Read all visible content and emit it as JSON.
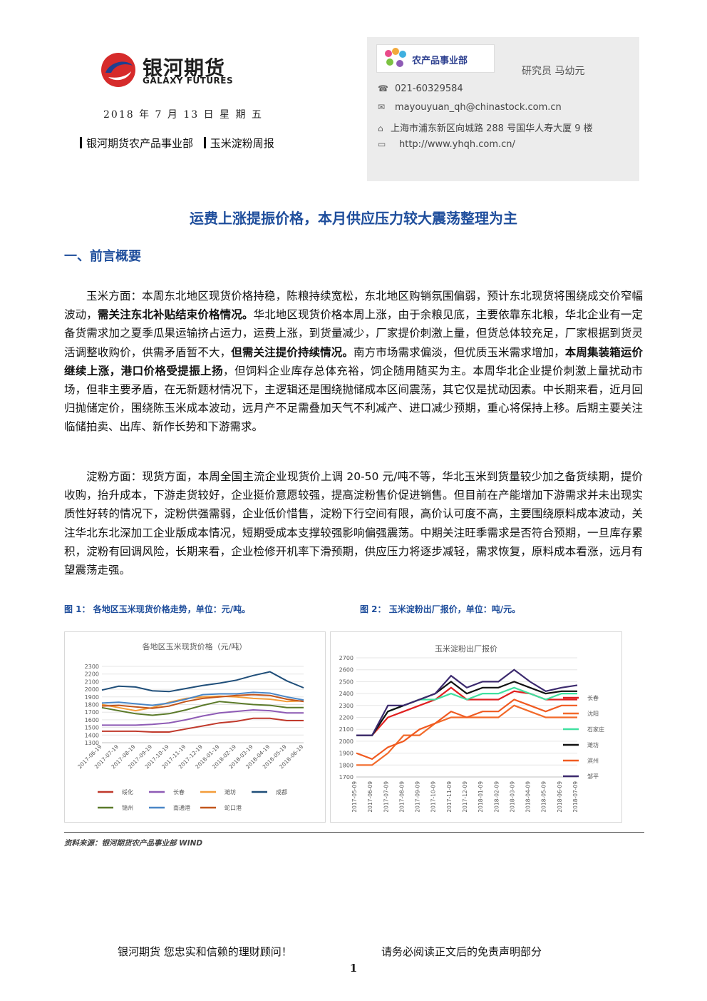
{
  "header": {
    "logo_cn": "银河期货",
    "logo_en": "GALAXY FUTURES",
    "date": "2018 年 7 月 13 日 星 期 五",
    "dept": "银河期货农产品事业部",
    "report": "玉米淀粉周报"
  },
  "contact": {
    "dept_badge": "农产品事业部",
    "researcher": "研究员   马幼元",
    "phone": "021-60329584",
    "email": "mayouyuan_qh@chinastock.com.cn",
    "address": "上海市浦东新区向城路 288 号国华人寿大厦 9 楼",
    "website": "http://www.yhqh.com.cn/",
    "icons": [
      "phone-icon",
      "email-icon",
      "address-icon",
      "website-icon"
    ]
  },
  "title": "运费上涨提振价格，本月供应压力较大震荡整理为主",
  "section1": "一、前言概要",
  "para1": {
    "s1": "玉米方面：本周东北地区现货价格持稳，陈粮持续宽松，东北地区购销氛围偏弱，预计东北现货将围绕成交价窄幅波动，",
    "b1": "需关注东北补贴结束价格情况。",
    "s2": "华北地区现货价格本周上涨，由于余粮见底，主要依靠东北粮，华北企业有一定备货需求加之夏季瓜果运输挤占运力，运费上涨，到货量减少，厂家提价刺激上量，但货总体较充足，厂家根据到货灵活调整收购价，供需矛盾暂不大，",
    "b2": "但需关注提价持续情况。",
    "s3": "南方市场需求偏淡，但优质玉米需求增加，",
    "b3": "本周集装箱运价继续上涨，港口价格受提振上扬",
    "s4": "，但饲料企业库存总体充裕，饲企随用随买为主。本周华北企业提价刺激上量扰动市场，但非主要矛盾，在无新题材情况下，主逻辑还是围绕抛储成本区间震荡，其它仅是扰动因素。中长期来看，近月回归抛储定价，围绕陈玉米成本波动，远月产不足需叠加天气不利减产、进口减少预期，重心将保持上移。后期主要关注临储拍卖、出库、新作长势和下游需求。"
  },
  "para2": "淀粉方面：现货方面，本周全国主流企业现货价上调 20-50 元/吨不等，华北玉米到货量较少加之备货续期，提价收购，抬升成本，下游走货较好，企业挺价意愿较强，提高淀粉售价促进销售。但目前在产能增加下游需求并未出现实质性好转的情况下，淀粉供强需弱，企业低价惜售，淀粉下行空间有限，高价认可度不高，主要围绕原料成本波动，关注华北东北深加工企业版成本情况，短期受成本支撑较强影响偏强震荡。中期关注旺季需求是否符合预期，一旦库存累积，淀粉有回调风险，长期来看，企业检修开机率下滑预期，供应压力将逐步减轻，需求恢复，原料成本看涨，远月有望震荡走强。",
  "fig1_caption": "图 1：  各地区玉米现货价格走势，单位：元/吨。",
  "fig2_caption": "图 2：  玉米淀粉出厂报价，单位：吨/元。",
  "source": "资料来源：银河期货农产品事业部  WIND",
  "footer": {
    "left": "银河期货  您忠实和信赖的理财顾问！",
    "right": "请务必阅读正文后的免责声明部分",
    "page": "1"
  },
  "chart_data": [
    {
      "type": "line",
      "title": "各地区玉米现货价格（元/吨）",
      "x": [
        "2017-06-19",
        "2017-07-19",
        "2017-08-19",
        "2017-09-19",
        "2017-10-19",
        "2017-11-19",
        "2017-12-19",
        "2018-01-19",
        "2018-02-19",
        "2018-03-19",
        "2018-04-19",
        "2018-05-19",
        "2018-06-19"
      ],
      "ylim": [
        1300,
        2300
      ],
      "yticks": [
        1300,
        1400,
        1500,
        1600,
        1700,
        1800,
        1900,
        2000,
        2100,
        2200,
        2300
      ],
      "legend_position": "bottom",
      "series": [
        {
          "name": "绥化",
          "color": "#c0392b",
          "values": [
            1450,
            1450,
            1450,
            1440,
            1440,
            1480,
            1520,
            1560,
            1580,
            1620,
            1620,
            1590,
            1590
          ]
        },
        {
          "name": "长春",
          "color": "#8e5bb5",
          "values": [
            1530,
            1530,
            1530,
            1540,
            1560,
            1600,
            1650,
            1690,
            1710,
            1730,
            1720,
            1690,
            1690
          ]
        },
        {
          "name": "潍坊",
          "color": "#f39c3a",
          "values": [
            1800,
            1760,
            1720,
            1760,
            1830,
            1880,
            1900,
            1910,
            1900,
            1880,
            1870,
            1840,
            1850
          ]
        },
        {
          "name": "成都",
          "color": "#1f4e79",
          "values": [
            1990,
            2040,
            2030,
            1980,
            1970,
            2010,
            2050,
            2080,
            2120,
            2180,
            2230,
            2110,
            2020
          ]
        },
        {
          "name": "锦州",
          "color": "#5b7a2a",
          "values": [
            1760,
            1720,
            1680,
            1660,
            1680,
            1730,
            1790,
            1840,
            1820,
            1800,
            1790,
            1760,
            1760
          ]
        },
        {
          "name": "南通港",
          "color": "#4a86c6",
          "values": [
            1820,
            1830,
            1810,
            1790,
            1820,
            1870,
            1930,
            1940,
            1940,
            1960,
            1950,
            1900,
            1860
          ]
        },
        {
          "name": "蛇口港",
          "color": "#c2561c",
          "values": [
            1780,
            1790,
            1770,
            1750,
            1780,
            1840,
            1880,
            1900,
            1920,
            1930,
            1920,
            1870,
            1840
          ]
        }
      ]
    },
    {
      "type": "line",
      "title": "玉米淀粉出厂报价",
      "x": [
        "2017-05-09",
        "2017-06-09",
        "2017-07-09",
        "2017-08-09",
        "2017-09-09",
        "2017-10-09",
        "2017-11-09",
        "2017-12-09",
        "2018-01-09",
        "2018-02-09",
        "2018-03-09",
        "2018-04-09",
        "2018-05-09",
        "2018-06-09",
        "2018-07-09"
      ],
      "ylim": [
        1700,
        2700
      ],
      "yticks": [
        1700,
        1800,
        1900,
        2000,
        2100,
        2200,
        2300,
        2400,
        2500,
        2600,
        2700
      ],
      "legend_position": "right",
      "series": [
        {
          "name": "长春",
          "color": "#e02020",
          "values": [
            2050,
            2050,
            2200,
            2250,
            2300,
            2350,
            2450,
            2350,
            2350,
            2350,
            2420,
            2400,
            2350,
            2350,
            2350
          ]
        },
        {
          "name": "沈阳",
          "color": "#f26a2a",
          "values": [
            1800,
            1800,
            1900,
            2050,
            2050,
            2150,
            2200,
            2200,
            2200,
            2200,
            2300,
            2250,
            2200,
            2200,
            2200
          ]
        },
        {
          "name": "石家庄",
          "color": "#40e0a0",
          "values": [
            2050,
            2050,
            2250,
            2300,
            2350,
            2350,
            2400,
            2350,
            2400,
            2400,
            2450,
            2400,
            2350,
            2400,
            2400
          ]
        },
        {
          "name": "潍坊",
          "color": "#111111",
          "values": [
            2050,
            2050,
            2250,
            2300,
            2350,
            2400,
            2500,
            2400,
            2450,
            2450,
            2500,
            2450,
            2400,
            2420,
            2420
          ]
        },
        {
          "name": "滨州",
          "color": "#f05a20",
          "values": [
            1900,
            1850,
            1950,
            2000,
            2100,
            2150,
            2250,
            2200,
            2250,
            2250,
            2350,
            2300,
            2250,
            2300,
            2300
          ]
        },
        {
          "name": "邹平",
          "color": "#3c2a6e",
          "values": [
            2050,
            2050,
            2300,
            2300,
            2350,
            2400,
            2550,
            2450,
            2500,
            2500,
            2600,
            2500,
            2420,
            2450,
            2470
          ]
        }
      ]
    }
  ]
}
